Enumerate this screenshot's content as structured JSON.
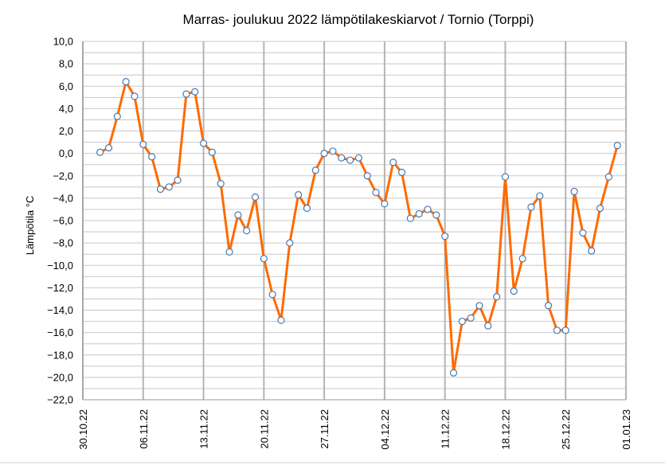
{
  "chart_data": {
    "type": "line",
    "title": "Marras- joulukuu 2022  lämpötilakeskiarvot  / Tornio (Torppi)",
    "ylabel": "Lämpötila  °C",
    "xlabel": "",
    "ylim": [
      -22,
      10
    ],
    "yticks": [
      "10,0",
      "8,0",
      "6,0",
      "4,0",
      "2,0",
      "0,0",
      "−2,0",
      "−4,0",
      "−6,0",
      "−8,0",
      "−10,0",
      "−12,0",
      "−14,0",
      "−16,0",
      "−18,0",
      "−20,0",
      "−22,0"
    ],
    "xticks": [
      "30.10.22",
      "06.11.22",
      "13.11.22",
      "20.11.22",
      "27.11.22",
      "04.12.22",
      "11.12.22",
      "18.12.22",
      "25.12.22",
      "01.01.23"
    ],
    "x_range": [
      "30.10.22",
      "01.01.23"
    ],
    "grid": true,
    "line_color": "#ff6a00",
    "marker_fill": "#ffffff",
    "marker_stroke": "#4a78b0",
    "series": [
      {
        "x": [
          "01.11.22",
          "02.11.22",
          "03.11.22",
          "04.11.22",
          "05.11.22",
          "06.11.22",
          "07.11.22",
          "08.11.22",
          "09.11.22",
          "10.11.22",
          "11.11.22",
          "12.11.22",
          "13.11.22",
          "14.11.22",
          "15.11.22",
          "16.11.22",
          "17.11.22",
          "18.11.22",
          "19.11.22",
          "20.11.22",
          "21.11.22",
          "22.11.22",
          "23.11.22",
          "24.11.22",
          "25.11.22",
          "26.11.22",
          "27.11.22",
          "28.11.22",
          "29.11.22",
          "30.11.22",
          "01.12.22",
          "02.12.22",
          "03.12.22",
          "04.12.22",
          "05.12.22",
          "06.12.22",
          "07.12.22",
          "08.12.22",
          "09.12.22",
          "10.12.22",
          "11.12.22",
          "12.12.22",
          "13.12.22",
          "14.12.22",
          "15.12.22",
          "16.12.22",
          "17.12.22",
          "18.12.22",
          "19.12.22",
          "20.12.22",
          "21.12.22",
          "22.12.22",
          "23.12.22",
          "24.12.22",
          "25.12.22",
          "26.12.22",
          "27.12.22",
          "28.12.22",
          "29.12.22",
          "30.12.22",
          "31.12.22"
        ],
        "values": [
          0.1,
          0.5,
          3.3,
          6.4,
          5.1,
          0.8,
          -0.3,
          -3.2,
          -3.0,
          -2.4,
          5.3,
          5.5,
          0.9,
          0.1,
          -2.7,
          -8.8,
          -5.5,
          -6.9,
          -3.9,
          -9.4,
          -12.6,
          -14.9,
          -8.0,
          -3.7,
          -4.9,
          -1.5,
          0.0,
          0.2,
          -0.4,
          -0.6,
          -0.4,
          -2.0,
          -3.5,
          -4.5,
          -0.8,
          -1.7,
          -5.8,
          -5.4,
          -5.0,
          -5.5,
          -7.4,
          -19.6,
          -15.0,
          -14.7,
          -13.6,
          -15.4,
          -12.8,
          -2.1,
          -12.3,
          -9.4,
          -4.8,
          -3.8,
          -13.6,
          -15.8,
          -15.8,
          -3.4,
          -7.1,
          -8.7,
          -4.9,
          -2.1,
          0.7
        ]
      }
    ]
  }
}
